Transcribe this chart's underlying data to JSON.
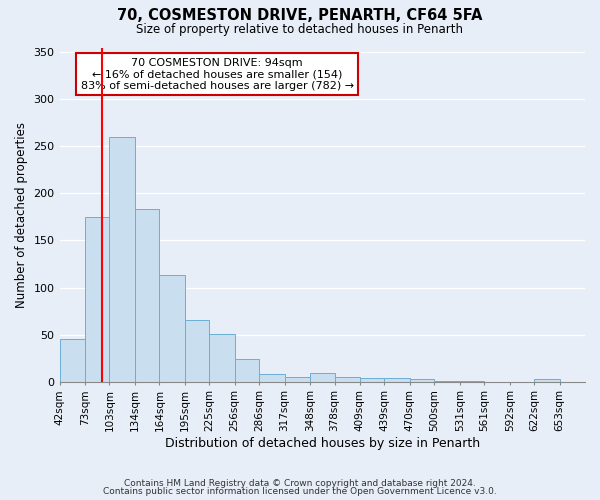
{
  "title": "70, COSMESTON DRIVE, PENARTH, CF64 5FA",
  "subtitle": "Size of property relative to detached houses in Penarth",
  "xlabel": "Distribution of detached houses by size in Penarth",
  "ylabel": "Number of detached properties",
  "bin_labels": [
    "42sqm",
    "73sqm",
    "103sqm",
    "134sqm",
    "164sqm",
    "195sqm",
    "225sqm",
    "256sqm",
    "286sqm",
    "317sqm",
    "348sqm",
    "378sqm",
    "409sqm",
    "439sqm",
    "470sqm",
    "500sqm",
    "531sqm",
    "561sqm",
    "592sqm",
    "622sqm",
    "653sqm"
  ],
  "bin_edges": [
    42,
    73,
    103,
    134,
    164,
    195,
    225,
    256,
    286,
    317,
    348,
    378,
    409,
    439,
    470,
    500,
    531,
    561,
    592,
    622,
    653
  ],
  "bar_heights": [
    45,
    175,
    260,
    183,
    113,
    65,
    51,
    24,
    8,
    5,
    9,
    5,
    4,
    4,
    3,
    1,
    1,
    0,
    0,
    3
  ],
  "bar_color": "#c9dff0",
  "bar_edge_color": "#6baed6",
  "red_line_x": 94,
  "ylim": [
    0,
    355
  ],
  "yticks": [
    0,
    50,
    100,
    150,
    200,
    250,
    300,
    350
  ],
  "annotation_line1": "70 COSMESTON DRIVE: 94sqm",
  "annotation_line2": "← 16% of detached houses are smaller (154)",
  "annotation_line3": "83% of semi-detached houses are larger (782) →",
  "footer_line1": "Contains HM Land Registry data © Crown copyright and database right 2024.",
  "footer_line2": "Contains public sector information licensed under the Open Government Licence v3.0.",
  "bg_color": "#e8eef7",
  "plot_bg_color": "#e8eef7"
}
